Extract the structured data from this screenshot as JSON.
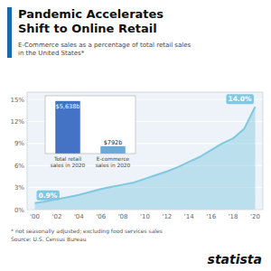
{
  "chart_data": [
    {
      "type": "area",
      "title": "Pandemic Accelerates\nShift to Online Retail",
      "subtitle": "E-Commerce sales as a percentage of total retail sales\nin the United States*",
      "x": [
        2000,
        2001,
        2002,
        2003,
        2004,
        2005,
        2006,
        2007,
        2008,
        2009,
        2010,
        2011,
        2012,
        2013,
        2014,
        2015,
        2016,
        2017,
        2018,
        2019,
        2020
      ],
      "values": [
        0.9,
        1.1,
        1.4,
        1.7,
        2.0,
        2.4,
        2.8,
        3.1,
        3.4,
        3.7,
        4.2,
        4.7,
        5.2,
        5.8,
        6.5,
        7.2,
        8.1,
        9.0,
        9.7,
        11.0,
        14.0
      ],
      "color": "#80c8e0",
      "xlim": [
        1999.3,
        2020.7
      ],
      "xticks": [
        {
          "value": 2000,
          "label": "'00"
        },
        {
          "value": 2002,
          "label": "'02"
        },
        {
          "value": 2004,
          "label": "'04"
        },
        {
          "value": 2006,
          "label": "'06"
        },
        {
          "value": 2008,
          "label": "'08"
        },
        {
          "value": 2010,
          "label": "'10"
        },
        {
          "value": 2012,
          "label": "'12"
        },
        {
          "value": 2014,
          "label": "'14"
        },
        {
          "value": 2016,
          "label": "'16"
        },
        {
          "value": 2018,
          "label": "'18"
        },
        {
          "value": 2020,
          "label": "'20"
        }
      ],
      "ylim": [
        0,
        16
      ],
      "yticks": [
        {
          "value": 0,
          "label": "0%"
        },
        {
          "value": 3,
          "label": "3%"
        },
        {
          "value": 6,
          "label": "6%"
        },
        {
          "value": 9,
          "label": "9%"
        },
        {
          "value": 12,
          "label": "12%"
        },
        {
          "value": 15,
          "label": "15%"
        }
      ],
      "grid": true,
      "annotations": [
        {
          "text": "0.9%",
          "x": 2000,
          "y": 0.9,
          "color": "#7ec8e3"
        },
        {
          "text": "14.0%",
          "x": 2020,
          "y": 14.0,
          "color": "#7ec8e3"
        }
      ],
      "notes": [
        "* not seasonally adjusted; excluding food services sales",
        "Source: U.S. Census Bureau"
      ],
      "credit": "statista"
    },
    {
      "type": "bar",
      "categories": [
        "Total retail\nsales in 2020",
        "E-commerce\nsales in 2020"
      ],
      "values": [
        5638,
        792
      ],
      "value_labels": [
        "$5,638b",
        "$792b"
      ],
      "colors": [
        "#4472c4",
        "#6aaad8"
      ],
      "ylim": [
        0,
        6200
      ],
      "tick_labels": "x",
      "data_labels": true
    }
  ]
}
